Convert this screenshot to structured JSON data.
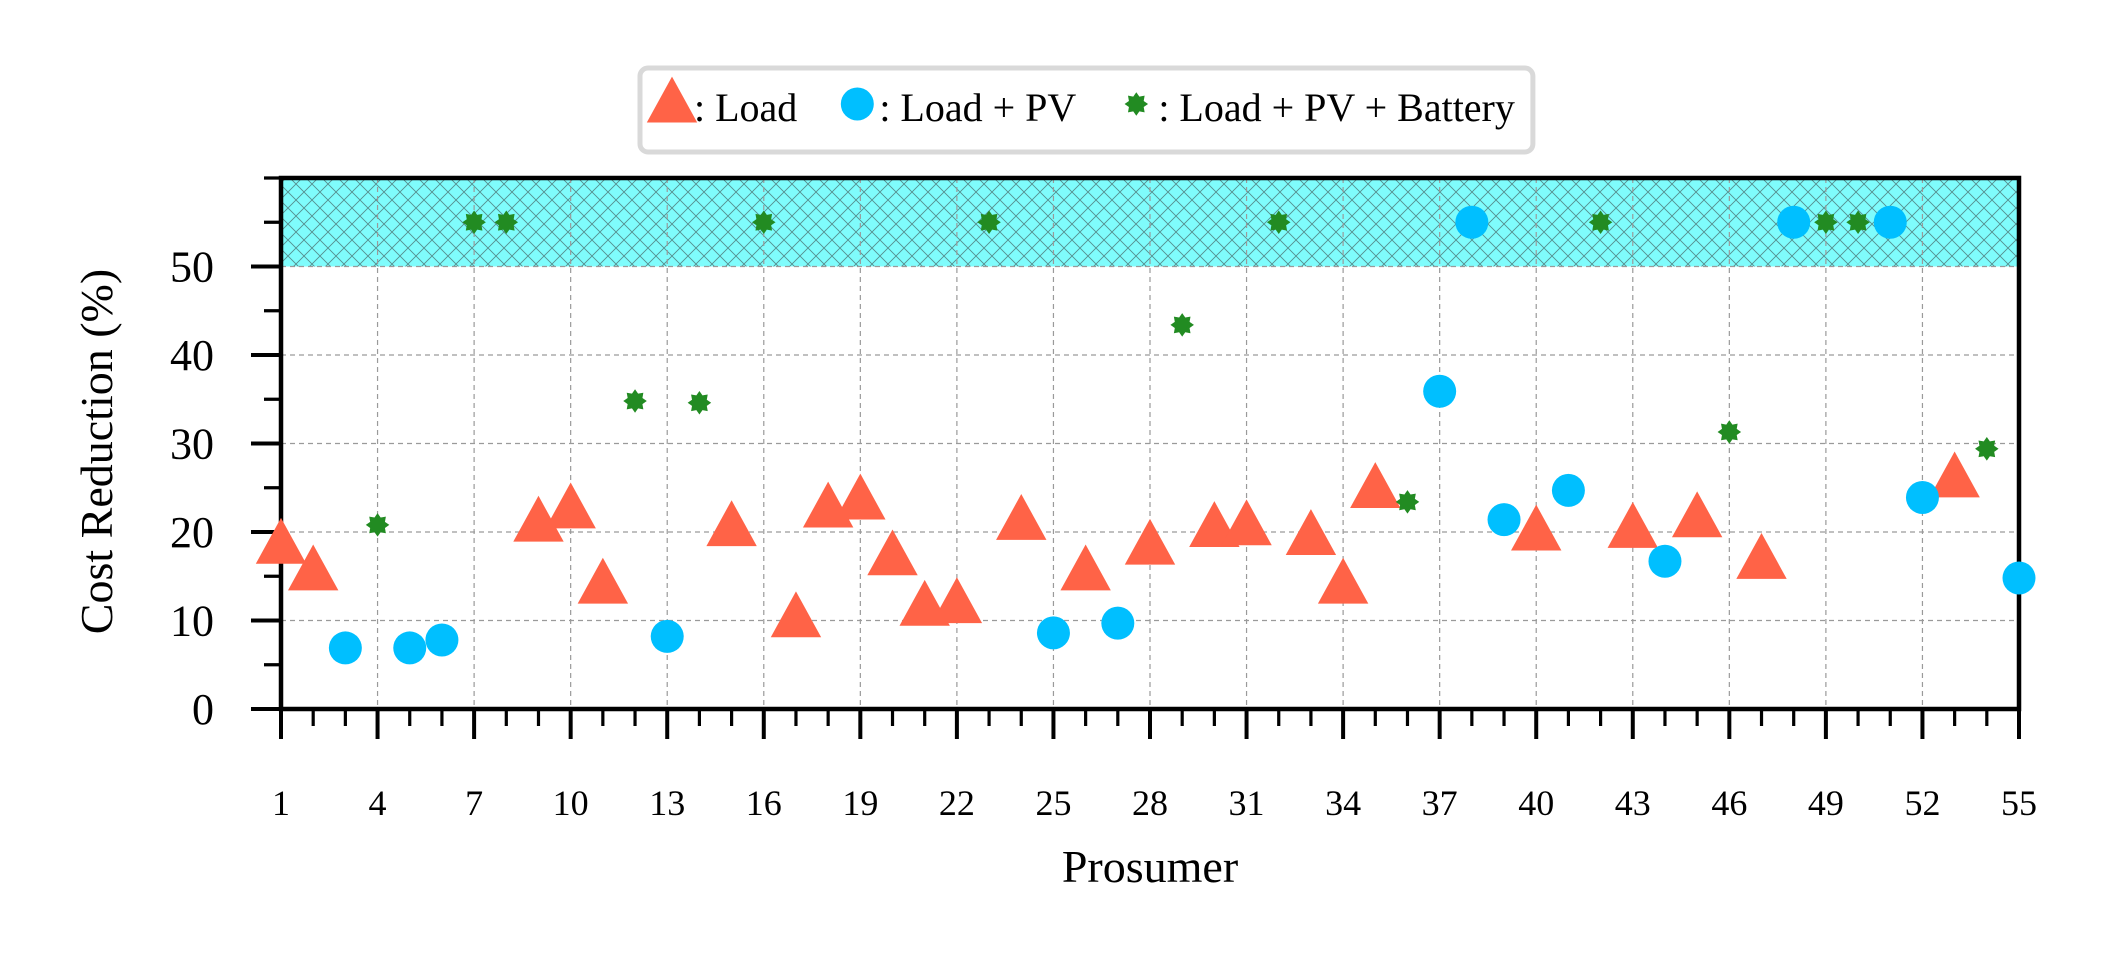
{
  "chart_data": {
    "type": "scatter",
    "xlabel": "Prosumer",
    "ylabel": "Cost Reduction (%)",
    "xlim": [
      1,
      55
    ],
    "ylim": [
      0,
      60
    ],
    "x_ticks": [
      1,
      4,
      7,
      10,
      13,
      16,
      19,
      22,
      25,
      28,
      31,
      34,
      37,
      40,
      43,
      46,
      49,
      52,
      55
    ],
    "y_ticks": [
      0,
      10,
      20,
      30,
      40,
      50
    ],
    "grid": true,
    "legend_position": "top-center",
    "shaded_band": {
      "from": 50,
      "to": 60,
      "color": "#7ffcfc",
      "pattern": "crosshatch"
    },
    "series": [
      {
        "name": ": Load",
        "marker": "triangle",
        "color": "#ff6347",
        "points": [
          [
            1,
            18.5
          ],
          [
            2,
            15.5
          ],
          [
            9,
            21
          ],
          [
            10,
            22.5
          ],
          [
            11,
            14
          ],
          [
            15,
            20.5
          ],
          [
            17,
            10.2
          ],
          [
            18,
            22.6
          ],
          [
            19,
            23.5
          ],
          [
            20,
            17.2
          ],
          [
            21,
            11.5
          ],
          [
            22,
            11.8
          ],
          [
            24,
            21.2
          ],
          [
            26,
            15.5
          ],
          [
            28,
            18.4
          ],
          [
            30,
            20.4
          ],
          [
            31,
            20.6
          ],
          [
            33,
            19.5
          ],
          [
            34,
            14
          ],
          [
            35,
            24.8
          ],
          [
            40,
            20
          ],
          [
            43,
            20.3
          ],
          [
            45,
            21.5
          ],
          [
            47,
            16.8
          ],
          [
            53,
            26
          ]
        ]
      },
      {
        "name": ": Load + PV",
        "marker": "circle",
        "color": "#00bfff",
        "points": [
          [
            3,
            6.9
          ],
          [
            5,
            6.9
          ],
          [
            6,
            7.8
          ],
          [
            13,
            8.2
          ],
          [
            25,
            8.6
          ],
          [
            27,
            9.7
          ],
          [
            37,
            35.9
          ],
          [
            38,
            55
          ],
          [
            39,
            21.4
          ],
          [
            41,
            24.7
          ],
          [
            44,
            16.7
          ],
          [
            48,
            55
          ],
          [
            51,
            55
          ],
          [
            52,
            23.9
          ],
          [
            55,
            14.8
          ]
        ]
      },
      {
        "name": ": Load + PV + Battery",
        "marker": "star",
        "color": "#228b22",
        "points": [
          [
            4,
            20.8
          ],
          [
            7,
            55
          ],
          [
            8,
            55
          ],
          [
            12,
            34.8
          ],
          [
            14,
            34.6
          ],
          [
            16,
            55
          ],
          [
            23,
            55
          ],
          [
            29,
            43.4
          ],
          [
            32,
            55
          ],
          [
            36,
            23.4
          ],
          [
            42,
            55
          ],
          [
            46,
            31.3
          ],
          [
            49,
            55
          ],
          [
            50,
            55
          ],
          [
            54,
            29.4
          ]
        ]
      }
    ]
  }
}
